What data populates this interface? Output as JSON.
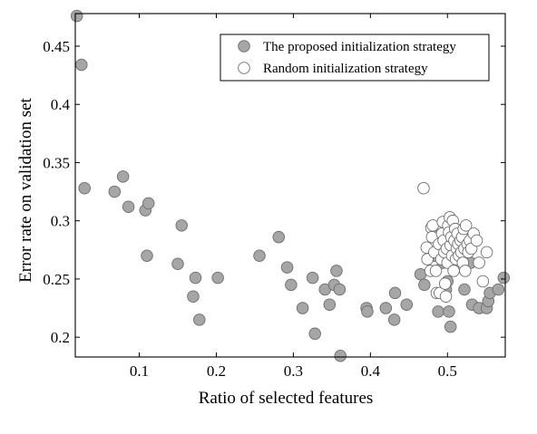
{
  "chart_data": {
    "type": "scatter",
    "xlabel": "Ratio of selected features",
    "ylabel": "Error rate on validation set",
    "xlim": [
      0.017,
      0.575
    ],
    "ylim": [
      0.183,
      0.478
    ],
    "xticks": [
      0.1,
      0.2,
      0.3,
      0.4,
      0.5
    ],
    "xtick_labels": [
      "0.1",
      "0.2",
      "0.3",
      "0.4",
      "0.5"
    ],
    "yticks": [
      0.2,
      0.25,
      0.3,
      0.35,
      0.4,
      0.45
    ],
    "ytick_labels": [
      "0.2",
      "0.25",
      "0.3",
      "0.35",
      "0.4",
      "0.45"
    ],
    "grid": false,
    "legend_position": "top-right",
    "series": [
      {
        "name": "The proposed initialization strategy",
        "marker_fill": "#a6a6a6",
        "marker_stroke": "#6e6e6e",
        "points": [
          [
            0.019,
            0.476
          ],
          [
            0.025,
            0.434
          ],
          [
            0.029,
            0.328
          ],
          [
            0.068,
            0.325
          ],
          [
            0.079,
            0.338
          ],
          [
            0.086,
            0.312
          ],
          [
            0.108,
            0.309
          ],
          [
            0.112,
            0.315
          ],
          [
            0.11,
            0.27
          ],
          [
            0.15,
            0.263
          ],
          [
            0.155,
            0.296
          ],
          [
            0.17,
            0.235
          ],
          [
            0.173,
            0.251
          ],
          [
            0.178,
            0.215
          ],
          [
            0.202,
            0.251
          ],
          [
            0.256,
            0.27
          ],
          [
            0.281,
            0.286
          ],
          [
            0.292,
            0.26
          ],
          [
            0.297,
            0.245
          ],
          [
            0.312,
            0.225
          ],
          [
            0.325,
            0.251
          ],
          [
            0.328,
            0.203
          ],
          [
            0.341,
            0.241
          ],
          [
            0.347,
            0.228
          ],
          [
            0.353,
            0.245
          ],
          [
            0.356,
            0.257
          ],
          [
            0.36,
            0.241
          ],
          [
            0.361,
            0.184
          ],
          [
            0.395,
            0.225
          ],
          [
            0.396,
            0.222
          ],
          [
            0.42,
            0.225
          ],
          [
            0.431,
            0.215
          ],
          [
            0.432,
            0.238
          ],
          [
            0.447,
            0.228
          ],
          [
            0.465,
            0.254
          ],
          [
            0.47,
            0.245
          ],
          [
            0.483,
            0.27
          ],
          [
            0.488,
            0.222
          ],
          [
            0.494,
            0.264
          ],
          [
            0.498,
            0.241
          ],
          [
            0.5,
            0.248
          ],
          [
            0.502,
            0.222
          ],
          [
            0.504,
            0.209
          ],
          [
            0.522,
            0.241
          ],
          [
            0.53,
            0.264
          ],
          [
            0.532,
            0.228
          ],
          [
            0.541,
            0.225
          ],
          [
            0.551,
            0.225
          ],
          [
            0.553,
            0.231
          ],
          [
            0.555,
            0.238
          ],
          [
            0.566,
            0.241
          ],
          [
            0.573,
            0.251
          ]
        ]
      },
      {
        "name": "Random initialization strategy",
        "marker_fill": "#ffffff",
        "marker_stroke": "#6e6e6e",
        "points": [
          [
            0.469,
            0.328
          ],
          [
            0.473,
            0.277
          ],
          [
            0.474,
            0.267
          ],
          [
            0.478,
            0.257
          ],
          [
            0.479,
            0.294
          ],
          [
            0.48,
            0.286
          ],
          [
            0.481,
            0.296
          ],
          [
            0.483,
            0.273
          ],
          [
            0.485,
            0.257
          ],
          [
            0.486,
            0.238
          ],
          [
            0.489,
            0.28
          ],
          [
            0.49,
            0.238
          ],
          [
            0.492,
            0.267
          ],
          [
            0.493,
            0.289
          ],
          [
            0.494,
            0.299
          ],
          [
            0.495,
            0.283
          ],
          [
            0.496,
            0.273
          ],
          [
            0.497,
            0.246
          ],
          [
            0.498,
            0.235
          ],
          [
            0.499,
            0.276
          ],
          [
            0.5,
            0.264
          ],
          [
            0.501,
            0.296
          ],
          [
            0.502,
            0.29
          ],
          [
            0.503,
            0.303
          ],
          [
            0.504,
            0.279
          ],
          [
            0.505,
            0.286
          ],
          [
            0.506,
            0.27
          ],
          [
            0.507,
            0.3
          ],
          [
            0.508,
            0.257
          ],
          [
            0.509,
            0.283
          ],
          [
            0.51,
            0.293
          ],
          [
            0.511,
            0.267
          ],
          [
            0.512,
            0.276
          ],
          [
            0.513,
            0.289
          ],
          [
            0.514,
            0.28
          ],
          [
            0.515,
            0.27
          ],
          [
            0.517,
            0.283
          ],
          [
            0.518,
            0.273
          ],
          [
            0.519,
            0.286
          ],
          [
            0.52,
            0.264
          ],
          [
            0.521,
            0.293
          ],
          [
            0.522,
            0.276
          ],
          [
            0.523,
            0.257
          ],
          [
            0.524,
            0.296
          ],
          [
            0.526,
            0.28
          ],
          [
            0.527,
            0.273
          ],
          [
            0.529,
            0.283
          ],
          [
            0.531,
            0.276
          ],
          [
            0.534,
            0.289
          ],
          [
            0.538,
            0.283
          ],
          [
            0.541,
            0.264
          ],
          [
            0.546,
            0.248
          ],
          [
            0.551,
            0.273
          ]
        ]
      }
    ]
  }
}
